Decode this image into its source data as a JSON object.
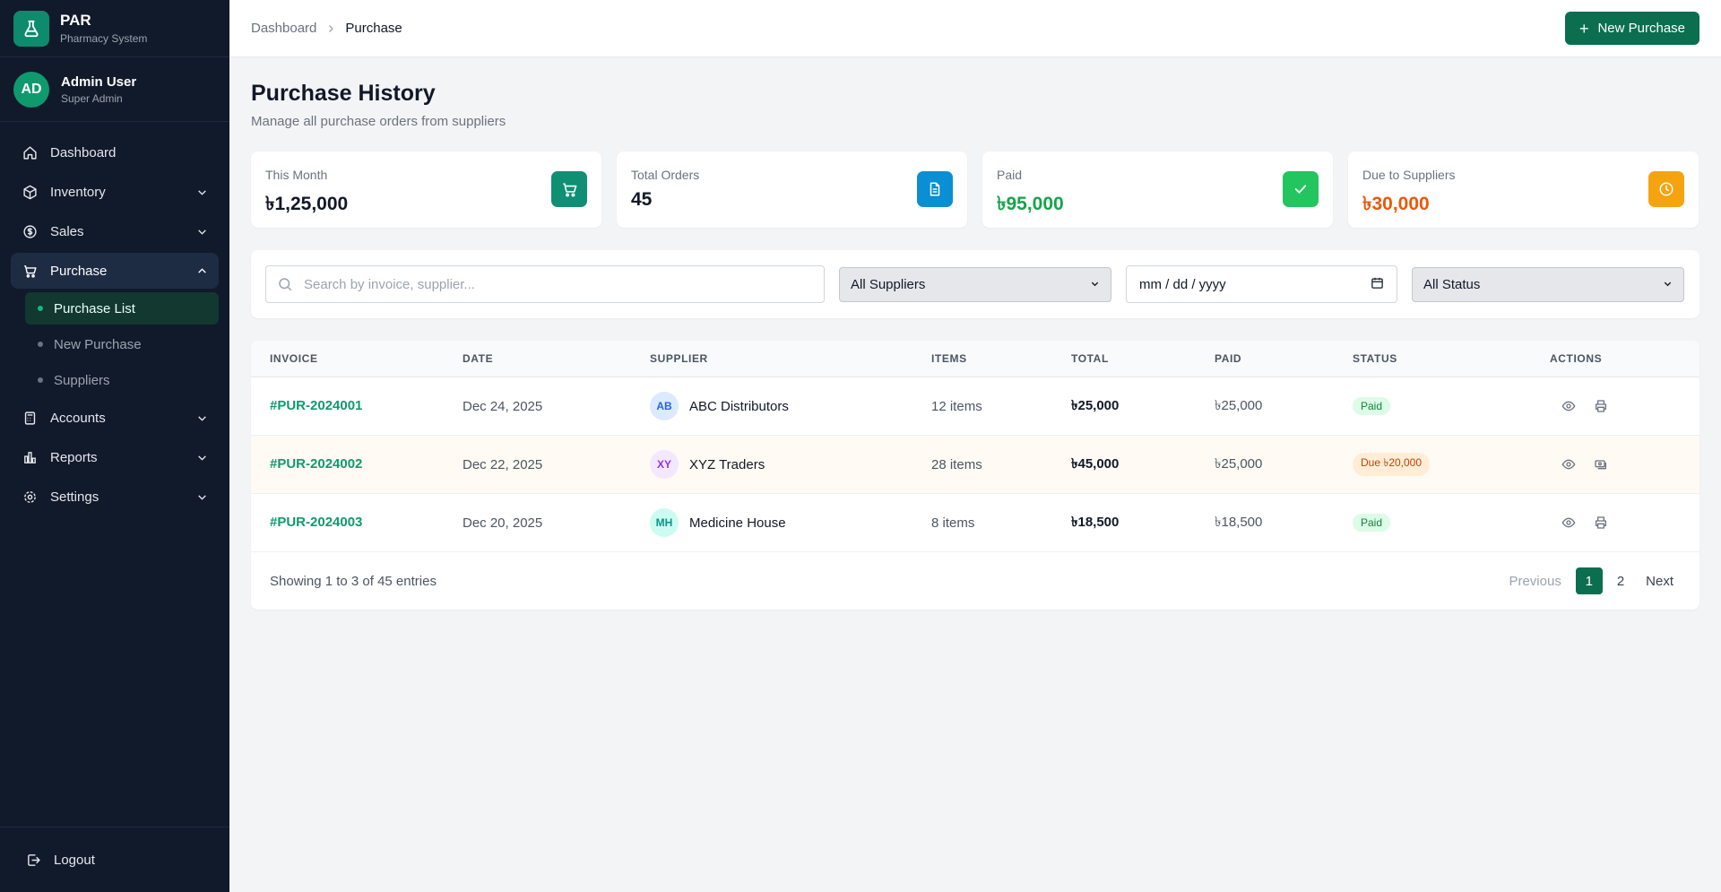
{
  "brand": {
    "title": "PAR",
    "subtitle": "Pharmacy System"
  },
  "user": {
    "initials": "AD",
    "name": "Admin User",
    "role": "Super Admin"
  },
  "nav": {
    "dashboard": "Dashboard",
    "inventory": "Inventory",
    "sales": "Sales",
    "purchase": "Purchase",
    "purchase_sub": [
      "Purchase List",
      "New Purchase",
      "Suppliers"
    ],
    "accounts": "Accounts",
    "reports": "Reports",
    "settings": "Settings",
    "logout": "Logout"
  },
  "breadcrumb": {
    "parent": "Dashboard",
    "current": "Purchase"
  },
  "header": {
    "new_button": "New Purchase"
  },
  "page": {
    "title": "Purchase History",
    "subtitle": "Manage all purchase orders from suppliers"
  },
  "stats": [
    {
      "label": "This Month",
      "value": "৳1,25,000",
      "color": "#111827",
      "icon": "cart-icon",
      "icon_bg": "#0f8f74"
    },
    {
      "label": "Total Orders",
      "value": "45",
      "color": "#111827",
      "icon": "document-icon",
      "icon_bg": "#0a8fd4"
    },
    {
      "label": "Paid",
      "value": "৳95,000",
      "color": "#16a34a",
      "icon": "check-icon",
      "icon_bg": "#22c55e"
    },
    {
      "label": "Due to Suppliers",
      "value": "৳30,000",
      "color": "#ea580c",
      "icon": "clock-icon",
      "icon_bg": "#f5a30f"
    }
  ],
  "filters": {
    "search_placeholder": "Search by invoice, supplier...",
    "supplier_select": "All Suppliers",
    "date_placeholder": "mm / dd / yyyy",
    "status_select": "All Status"
  },
  "table": {
    "headers": {
      "invoice": "INVOICE",
      "date": "DATE",
      "supplier": "SUPPLIER",
      "items": "ITEMS",
      "total": "TOTAL",
      "paid": "PAID",
      "status": "STATUS",
      "actions": "ACTIONS"
    },
    "rows": [
      {
        "invoice": "#PUR-2024001",
        "date": "Dec 24, 2025",
        "supplier_initials": "AB",
        "supplier": "ABC Distributors",
        "items": "12 items",
        "total": "৳25,000",
        "paid": "৳25,000",
        "status": "Paid"
      },
      {
        "invoice": "#PUR-2024002",
        "date": "Dec 22, 2025",
        "supplier_initials": "XY",
        "supplier": "XYZ Traders",
        "items": "28 items",
        "total": "৳45,000",
        "paid": "৳25,000",
        "status": "Due ৳20,000"
      },
      {
        "invoice": "#PUR-2024003",
        "date": "Dec 20, 2025",
        "supplier_initials": "MH",
        "supplier": "Medicine House",
        "items": "8 items",
        "total": "৳18,500",
        "paid": "৳18,500",
        "status": "Paid"
      }
    ],
    "footer": "Showing 1 to 3 of 45 entries"
  },
  "pagination": {
    "previous": "Previous",
    "pages": [
      "1",
      "2"
    ],
    "next": "Next"
  },
  "colors": {
    "accent": "#0b6e4f",
    "sidebar": "#111a2b",
    "paid_badge_bg": "#dcfce7",
    "paid_badge_fg": "#15803d",
    "due_badge_bg": "#ffedd5",
    "due_badge_fg": "#c2410c"
  }
}
